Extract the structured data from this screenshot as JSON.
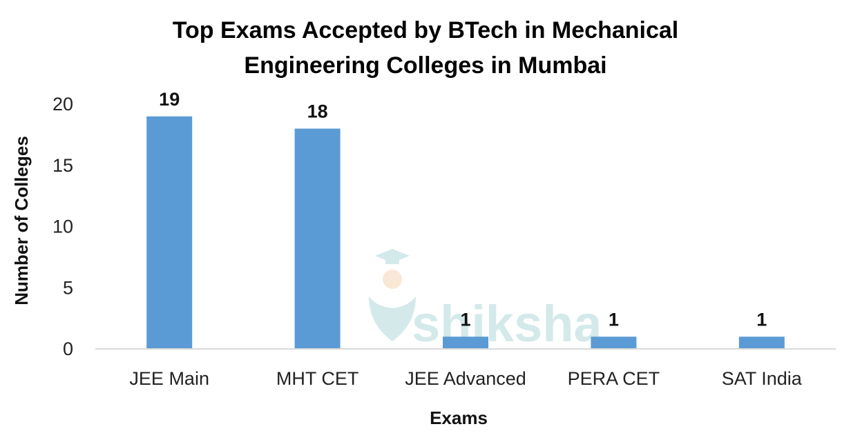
{
  "chart_data": {
    "type": "bar",
    "title_lines": [
      "Top Exams Accepted by BTech in Mechanical",
      "Engineering Colleges in Mumbai"
    ],
    "xlabel": "Exams",
    "ylabel": "Number of Colleges",
    "categories": [
      "JEE Main",
      "MHT CET",
      "JEE Advanced",
      "PERA CET",
      "SAT India"
    ],
    "values": [
      19,
      18,
      1,
      1,
      1
    ],
    "data_labels": [
      "19",
      "18",
      "1",
      "1",
      "1"
    ],
    "y_ticks": [
      0,
      5,
      10,
      15,
      20
    ],
    "y_tick_labels": [
      "0",
      "5",
      "10",
      "15",
      "20"
    ],
    "ylim": [
      0,
      20
    ],
    "grid": false,
    "legend": "none",
    "bar_color": "#5b9bd5",
    "axis_color": "#d9d9d9"
  },
  "watermark": {
    "text": "shiksha",
    "icon": "graduate-cap-icon",
    "color": "#d4e9ea"
  }
}
